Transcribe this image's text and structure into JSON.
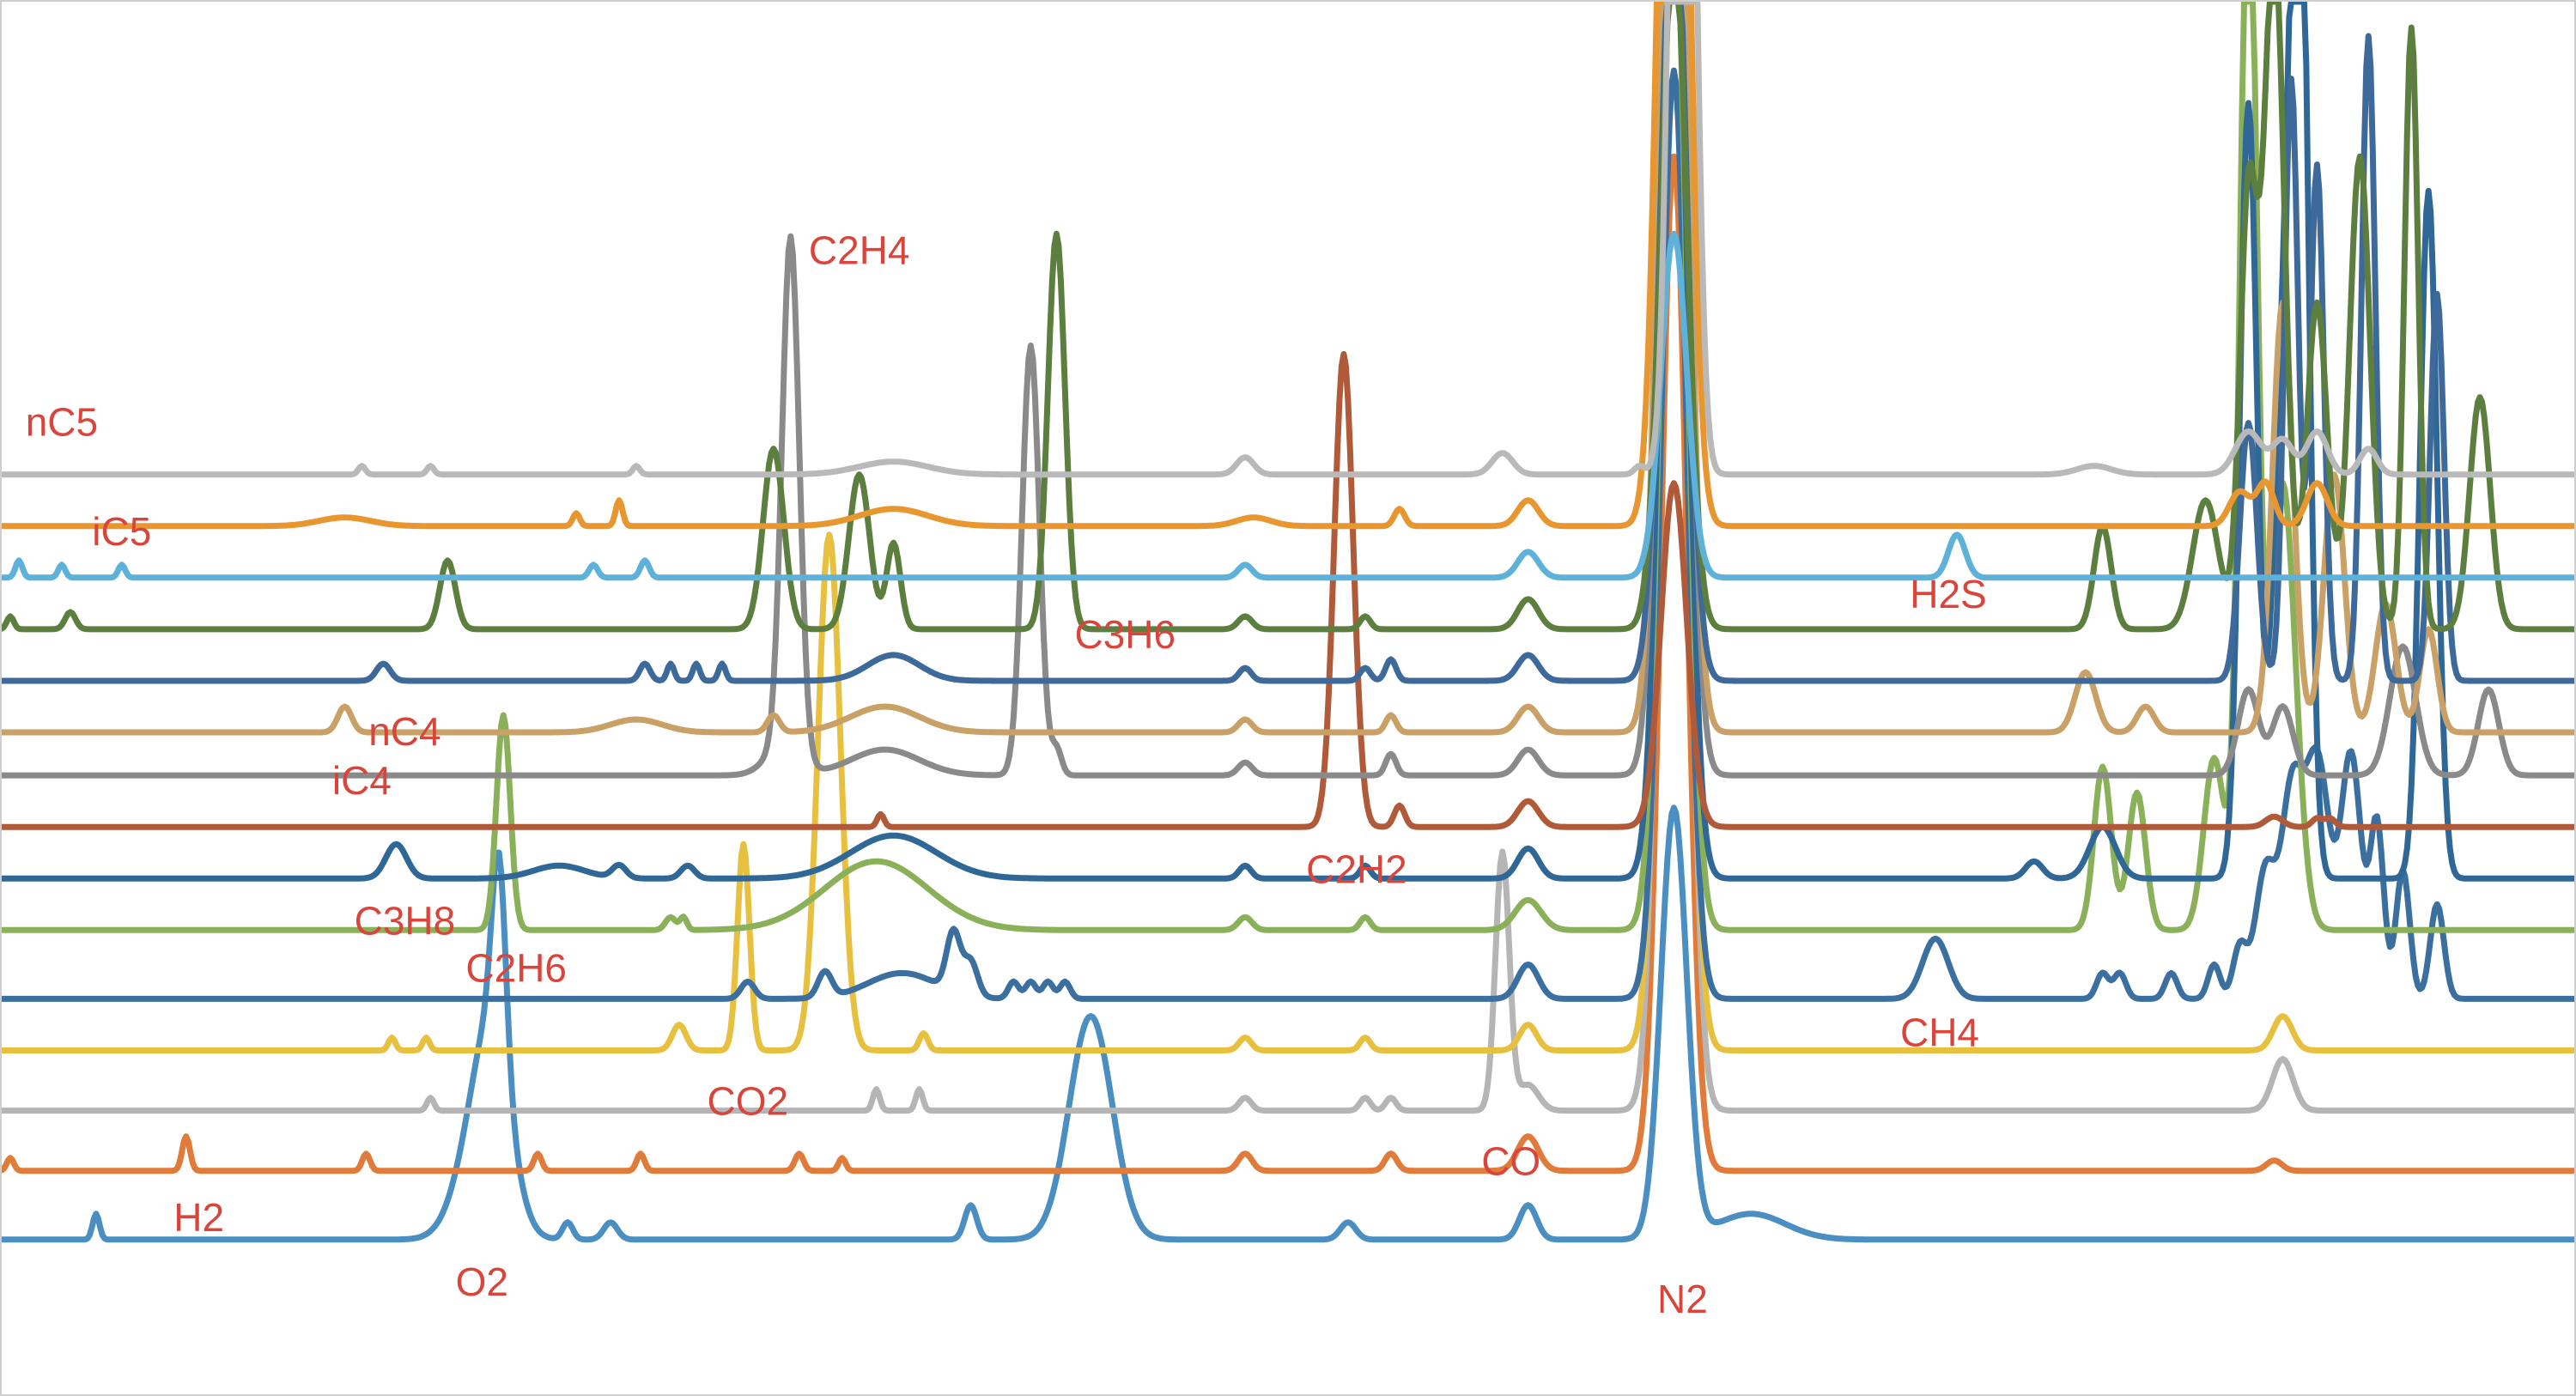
{
  "chart_data": {
    "type": "line",
    "title": "",
    "xlabel": "",
    "ylabel": "",
    "grid": false,
    "legend": "none",
    "xlim": [
      0,
      300
    ],
    "ylim": [
      0,
      162
    ],
    "label_color": "#d9443b",
    "series": [
      {
        "color": "#4a8ec2",
        "baseline": 18,
        "labels": [
          {
            "text": "O2",
            "at": 56,
            "y": 11.5
          }
        ],
        "peaks": [
          [
            11,
            0.4,
            3
          ],
          [
            56,
            2.6,
            14
          ],
          [
            57.5,
            2.0,
            13
          ],
          [
            58,
            0.8,
            22
          ],
          [
            66,
            0.6,
            2
          ],
          [
            71,
            0.8,
            2
          ],
          [
            113,
            0.7,
            4
          ],
          [
            127,
            2.5,
            26
          ],
          [
            157,
            0.9,
            2
          ],
          [
            178,
            1.0,
            4
          ],
          [
            195,
            1.5,
            50
          ],
          [
            204,
            4,
            3
          ]
        ]
      },
      {
        "color": "#e07b39",
        "baseline": 26,
        "labels": [
          {
            "text": "H2",
            "at": 23,
            "y": 19
          }
        ],
        "peaks": [
          [
            1,
            0.4,
            1.5
          ],
          [
            21.5,
            0.45,
            4
          ],
          [
            42.5,
            0.45,
            2
          ],
          [
            62.5,
            0.45,
            2
          ],
          [
            74.5,
            0.45,
            2
          ],
          [
            93,
            0.5,
            2
          ],
          [
            98,
            0.4,
            1.5
          ],
          [
            145,
            0.8,
            2
          ],
          [
            162,
            0.7,
            2
          ],
          [
            178,
            1.2,
            4
          ],
          [
            195,
            1.5,
            118
          ],
          [
            265,
            0.9,
            1.2
          ]
        ]
      },
      {
        "color": "#b5b5b5",
        "baseline": 33,
        "labels": [
          {
            "text": "CO",
            "at": 176,
            "y": 25.5
          }
        ],
        "peaks": [
          [
            50,
            0.4,
            1.5
          ],
          [
            102,
            0.4,
            2.5
          ],
          [
            107,
            0.4,
            2.5
          ],
          [
            145,
            0.7,
            1.5
          ],
          [
            159,
            0.6,
            1.5
          ],
          [
            162,
            0.6,
            1.5
          ],
          [
            175,
            0.8,
            30
          ],
          [
            178,
            1.2,
            3
          ],
          [
            195,
            1.5,
            162
          ],
          [
            266,
            1.2,
            6
          ]
        ]
      },
      {
        "color": "#e8c040",
        "baseline": 40,
        "labels": [
          {
            "text": "CO2",
            "at": 87,
            "y": 32.5
          }
        ],
        "peaks": [
          [
            45.5,
            0.4,
            1.5
          ],
          [
            49.5,
            0.4,
            1.5
          ],
          [
            79,
            0.8,
            3
          ],
          [
            86.5,
            0.7,
            24
          ],
          [
            96.5,
            1.3,
            60
          ],
          [
            107.5,
            0.5,
            2
          ],
          [
            145,
            0.7,
            1.5
          ],
          [
            159,
            0.6,
            1.5
          ],
          [
            178,
            1.0,
            3
          ],
          [
            195,
            1.5,
            150
          ],
          [
            266,
            1.1,
            4
          ]
        ]
      },
      {
        "color": "#3a6fa0",
        "baseline": 46,
        "labels": [
          {
            "text": "CH4",
            "at": 226,
            "y": 40.5
          }
        ],
        "peaks": [
          [
            87,
            0.8,
            2
          ],
          [
            96,
            0.8,
            3
          ],
          [
            105,
            4,
            3
          ],
          [
            111,
            0.8,
            7
          ],
          [
            113,
            0.8,
            4
          ],
          [
            118,
            0.6,
            2
          ],
          [
            120,
            0.6,
            2
          ],
          [
            122,
            0.6,
            2
          ],
          [
            124,
            0.6,
            2
          ],
          [
            178,
            1.2,
            4
          ],
          [
            195,
            1.5,
            108
          ],
          [
            225.5,
            1.5,
            7
          ],
          [
            245,
            0.7,
            3
          ],
          [
            247,
            0.7,
            3
          ],
          [
            253,
            0.7,
            3
          ],
          [
            258,
            0.7,
            4
          ],
          [
            261,
            0.8,
            6
          ],
          [
            264,
            1.2,
            15
          ],
          [
            267,
            1.2,
            22
          ],
          [
            270,
            1.5,
            28
          ],
          [
            274,
            1.2,
            28
          ],
          [
            277,
            0.8,
            20
          ],
          [
            280,
            0.8,
            15
          ],
          [
            284,
            0.8,
            11
          ]
        ]
      },
      {
        "color": "#8ab15a",
        "baseline": 54,
        "labels": [
          {
            "text": "C2H6",
            "at": 60,
            "y": 48
          }
        ],
        "peaks": [
          [
            58.5,
            0.8,
            25
          ],
          [
            78,
            0.6,
            1.5
          ],
          [
            79.5,
            0.4,
            1.5
          ],
          [
            102,
            6,
            8
          ],
          [
            145,
            0.8,
            1.5
          ],
          [
            159,
            0.6,
            1.5
          ],
          [
            178,
            1.5,
            3.5
          ],
          [
            195,
            1.5,
            120
          ],
          [
            245,
            1.0,
            19
          ],
          [
            249,
            1.0,
            16
          ],
          [
            258,
            1.2,
            20
          ],
          [
            262,
            1.0,
            125
          ],
          [
            266,
            1.5,
            52
          ]
        ]
      },
      {
        "color": "#2f6796",
        "baseline": 60,
        "labels": [
          {
            "text": "C3H8",
            "at": 47,
            "y": 53.5
          }
        ],
        "peaks": [
          [
            46,
            1.2,
            4
          ],
          [
            65,
            3,
            1.5
          ],
          [
            72,
            0.8,
            1.5
          ],
          [
            80,
            0.8,
            1.5
          ],
          [
            104,
            5,
            5
          ],
          [
            145,
            0.7,
            1.5
          ],
          [
            159,
            0.6,
            1.5
          ],
          [
            178,
            1.2,
            3.5
          ],
          [
            195,
            1.5,
            120
          ],
          [
            237,
            1.0,
            2
          ],
          [
            245,
            1.5,
            6
          ],
          [
            262,
            1.0,
            90
          ],
          [
            266,
            1.2,
            55
          ],
          [
            268,
            1.0,
            120
          ],
          [
            283,
            1.0,
            80
          ]
        ]
      },
      {
        "color": "#b05a3a",
        "baseline": 66,
        "labels": [
          {
            "text": "C2H2",
            "at": 158,
            "y": 59.5
          }
        ],
        "peaks": [
          [
            102.5,
            0.4,
            1.5
          ],
          [
            156.5,
            1.1,
            55
          ],
          [
            163,
            0.6,
            2.5
          ],
          [
            178,
            1.2,
            3
          ],
          [
            195,
            1.5,
            40
          ],
          [
            265,
            1.0,
            1.2
          ],
          [
            270,
            0.6,
            1.0
          ],
          [
            271.5,
            0.6,
            1.0
          ]
        ]
      },
      {
        "color": "#8a8a8a",
        "baseline": 72,
        "labels": [
          {
            "text": "iC4",
            "at": 42,
            "y": 69.8
          }
        ],
        "peaks": [
          [
            91,
            2,
            3
          ],
          [
            92,
            1.0,
            60
          ],
          [
            103,
            4,
            3
          ],
          [
            120,
            1.0,
            50
          ],
          [
            123,
            0.6,
            3
          ],
          [
            145,
            0.8,
            1.5
          ],
          [
            162,
            0.6,
            2.5
          ],
          [
            178,
            1.2,
            3
          ],
          [
            195,
            1.5,
            140
          ],
          [
            262,
            1.2,
            10
          ],
          [
            266,
            1.2,
            8
          ],
          [
            280,
            1.5,
            15
          ],
          [
            290,
            1.2,
            10
          ]
        ]
      },
      {
        "color": "#c9a066",
        "baseline": 77,
        "labels": [
          {
            "text": "nC4",
            "at": 47,
            "y": 75.5
          }
        ],
        "peaks": [
          [
            40,
            0.8,
            3
          ],
          [
            74,
            3,
            1.5
          ],
          [
            90,
            0.7,
            2
          ],
          [
            103,
            4,
            3
          ],
          [
            145,
            0.8,
            1.5
          ],
          [
            162,
            0.6,
            2
          ],
          [
            178,
            1.2,
            3
          ],
          [
            195,
            1.5,
            150
          ],
          [
            243,
            1.2,
            7
          ],
          [
            250,
            1.0,
            3
          ],
          [
            266,
            1.2,
            50
          ],
          [
            272,
            1.2,
            30
          ],
          [
            278,
            1.2,
            15
          ],
          [
            283,
            1.0,
            12
          ]
        ]
      },
      {
        "color": "#3d6a9a",
        "baseline": 83,
        "labels": [
          {
            "text": "C3H6",
            "at": 131,
            "y": 86.8
          }
        ],
        "peaks": [
          [
            44.5,
            0.8,
            2
          ],
          [
            75,
            0.6,
            2
          ],
          [
            78,
            0.4,
            2
          ],
          [
            81,
            0.4,
            2
          ],
          [
            84,
            0.4,
            2
          ],
          [
            104,
            3,
            3
          ],
          [
            145,
            0.7,
            1.5
          ],
          [
            159,
            0.6,
            1.5
          ],
          [
            162,
            0.6,
            2.5
          ],
          [
            178,
            1.2,
            3
          ],
          [
            195,
            1.5,
            95
          ],
          [
            262,
            1.0,
            30
          ],
          [
            267,
            0.8,
            70
          ],
          [
            270,
            0.8,
            60
          ],
          [
            276,
            0.8,
            75
          ],
          [
            284,
            0.8,
            45
          ]
        ]
      },
      {
        "color": "#5c7f3f",
        "baseline": 89,
        "labels": [],
        "peaks": [
          [
            1,
            0.4,
            1.5
          ],
          [
            8,
            0.6,
            2
          ],
          [
            52,
            0.9,
            8
          ],
          [
            90,
            1.2,
            21
          ],
          [
            100,
            1.2,
            18
          ],
          [
            104,
            0.8,
            10
          ],
          [
            123,
            1.0,
            46
          ],
          [
            145,
            0.8,
            1.5
          ],
          [
            159,
            0.6,
            1.5
          ],
          [
            178,
            1.2,
            3.5
          ],
          [
            195,
            1.5,
            80
          ],
          [
            245,
            1.0,
            12
          ],
          [
            257,
            1.5,
            15
          ],
          [
            262,
            1.0,
            50
          ],
          [
            265,
            1.2,
            80
          ],
          [
            270,
            1.2,
            38
          ],
          [
            275,
            1.2,
            55
          ],
          [
            281,
            0.8,
            70
          ],
          [
            289,
            1.2,
            27
          ]
        ]
      },
      {
        "color": "#5eb2d9",
        "baseline": 95,
        "labels": [
          {
            "text": "iC5",
            "at": 14,
            "y": 98.8
          },
          {
            "text": "H2S",
            "at": 227,
            "y": 91.5
          }
        ],
        "peaks": [
          [
            2,
            0.4,
            2
          ],
          [
            7,
            0.4,
            1.5
          ],
          [
            14,
            0.4,
            1.5
          ],
          [
            69,
            0.5,
            1.5
          ],
          [
            75,
            0.5,
            2
          ],
          [
            145,
            0.8,
            1.5
          ],
          [
            178,
            1.2,
            3
          ],
          [
            195,
            1.5,
            40
          ],
          [
            228,
            1.0,
            5
          ]
        ]
      },
      {
        "color": "#e8962f",
        "baseline": 101,
        "labels": [],
        "peaks": [
          [
            40,
            3,
            1.0
          ],
          [
            67,
            0.4,
            1.5
          ],
          [
            72,
            0.4,
            3
          ],
          [
            104,
            4,
            2
          ],
          [
            146,
            2,
            1
          ],
          [
            163,
            0.6,
            2
          ],
          [
            178,
            1.2,
            3
          ],
          [
            195,
            1.5,
            150
          ],
          [
            261,
            1.2,
            4
          ],
          [
            264,
            1.0,
            5
          ],
          [
            270,
            1.2,
            5
          ]
        ]
      },
      {
        "color": "#b9b9b9",
        "baseline": 107,
        "labels": [
          {
            "text": "nC5",
            "at": 7,
            "y": 111.5
          }
        ],
        "peaks": [
          [
            42,
            0.4,
            1.0
          ],
          [
            50,
            0.4,
            1.0
          ],
          [
            74,
            0.4,
            1.0
          ],
          [
            104,
            4,
            1.5
          ],
          [
            145,
            1.0,
            2
          ],
          [
            175,
            1.2,
            2.5
          ],
          [
            191,
            0.6,
            1.0
          ],
          [
            196,
            1.2,
            160
          ],
          [
            244,
            2,
            1
          ],
          [
            262,
            1.5,
            5
          ],
          [
            266,
            1.2,
            4
          ],
          [
            270,
            1.2,
            5
          ],
          [
            276,
            1.0,
            3
          ]
        ]
      }
    ],
    "extra_labels": [
      {
        "text": "C2H4",
        "at": 100,
        "y": 131.5
      },
      {
        "text": "N2",
        "at": 196,
        "y": 9.5
      }
    ]
  }
}
